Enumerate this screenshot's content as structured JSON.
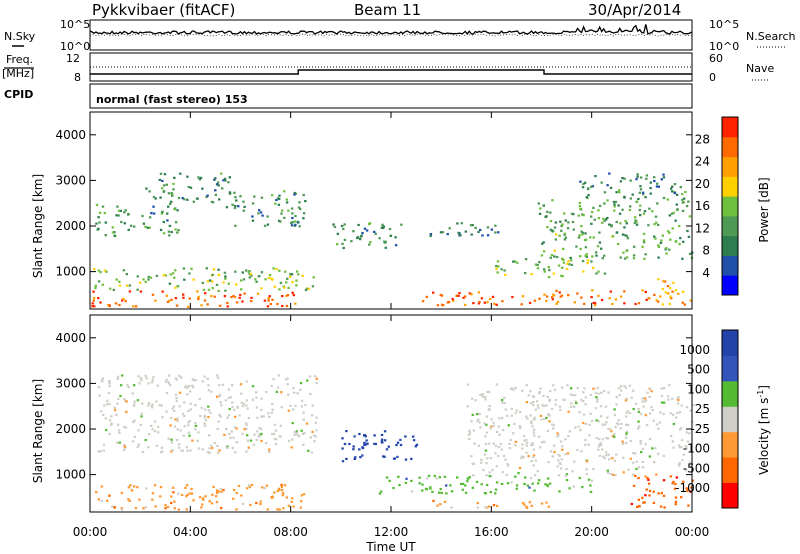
{
  "header": {
    "radar": "Pykkvibaer (fitACF)",
    "beam": "Beam 11",
    "date": "30/Apr/2014"
  },
  "noise_panel": {
    "left_label": "N.Sky",
    "left_ticks": [
      "10^5",
      "10^0"
    ],
    "right_label": "N.Search",
    "right_ticks": [
      "10^5",
      "10^0"
    ]
  },
  "freq_panel": {
    "left_label_1": "Freq.",
    "left_label_2": "[MHz]",
    "left_ticks": [
      "12",
      "8"
    ],
    "right_label": "Nave",
    "right_ticks": [
      "60",
      "0"
    ]
  },
  "cpid": {
    "label": "CPID",
    "text": "normal (fast stereo) 153"
  },
  "axes": {
    "ylabel": "Slant Range [km]",
    "xlabel": "Time UT",
    "yticks": [
      "1000",
      "2000",
      "3000",
      "4000"
    ],
    "xticks": [
      "00:00",
      "04:00",
      "08:00",
      "12:00",
      "16:00",
      "20:00",
      "00:00"
    ]
  },
  "colors": {
    "power": [
      "#0000ff",
      "#1f4fa8",
      "#2e7d4f",
      "#4e9a55",
      "#6fbf3f",
      "#ffd000",
      "#ff9f00",
      "#ff6a00",
      "#ff2200"
    ],
    "velocity": [
      "#ff0000",
      "#ff6600",
      "#ff9933",
      "#cfcfc8",
      "#55bb33",
      "#3355bb",
      "#2244aa"
    ]
  },
  "chart_data": [
    {
      "type": "heatmap",
      "title": "Power",
      "quantity": "Power [dB]",
      "x_range": [
        "00:00",
        "24:00"
      ],
      "y_range_km": [
        180,
        4500
      ],
      "colorbar_label": "Power [dB]",
      "colorbar_ticks": [
        "28",
        "24",
        "20",
        "16",
        "12",
        "8",
        "4"
      ],
      "colorbar_range": [
        0,
        30
      ],
      "regions": [
        {
          "t": [
            0.0,
            8.3
          ],
          "r": [
            250,
            600
          ],
          "level": 27
        },
        {
          "t": [
            0.0,
            9.0
          ],
          "r": [
            600,
            1100
          ],
          "level": 14
        },
        {
          "t": [
            0.2,
            3.5
          ],
          "r": [
            1800,
            2500
          ],
          "level": 10
        },
        {
          "t": [
            2.2,
            5.6
          ],
          "r": [
            2500,
            3200
          ],
          "level": 9
        },
        {
          "t": [
            5.4,
            8.6
          ],
          "r": [
            2000,
            2800
          ],
          "level": 9
        },
        {
          "t": [
            9.6,
            12.4
          ],
          "r": [
            1500,
            2100
          ],
          "level": 10
        },
        {
          "t": [
            13.0,
            16.5
          ],
          "r": [
            1800,
            2100
          ],
          "level": 8
        },
        {
          "t": [
            13.2,
            22.5
          ],
          "r": [
            280,
            620
          ],
          "level": 26
        },
        {
          "t": [
            16.0,
            20.5
          ],
          "r": [
            900,
            1300
          ],
          "level": 14
        },
        {
          "t": [
            17.8,
            24.0
          ],
          "r": [
            1300,
            2600
          ],
          "level": 12
        },
        {
          "t": [
            19.5,
            23.8
          ],
          "r": [
            2600,
            3200
          ],
          "level": 9
        },
        {
          "t": [
            22.5,
            24.0
          ],
          "r": [
            300,
            900
          ],
          "level": 22
        }
      ]
    },
    {
      "type": "heatmap",
      "title": "Velocity",
      "quantity": "Velocity [m s^-1]",
      "x_range": [
        "00:00",
        "24:00"
      ],
      "y_range_km": [
        180,
        4500
      ],
      "colorbar_label": "Velocity [m s",
      "colorbar_label_sup": "-1",
      "colorbar_label_end": "]",
      "colorbar_ticks": [
        "1000",
        "500",
        "100",
        "25",
        "-25",
        "-100",
        "-500",
        "-1000"
      ],
      "regions": [
        {
          "t": [
            0.0,
            8.5
          ],
          "r": [
            250,
            800
          ],
          "class": "-100"
        },
        {
          "t": [
            0.3,
            9.0
          ],
          "r": [
            1500,
            3200
          ],
          "class": "25"
        },
        {
          "t": [
            10.0,
            13.0
          ],
          "r": [
            1300,
            2000
          ],
          "class": "1000"
        },
        {
          "t": [
            11.5,
            20.0
          ],
          "r": [
            600,
            1000
          ],
          "class": "100"
        },
        {
          "t": [
            13.5,
            18.5
          ],
          "r": [
            280,
            450
          ],
          "class": "-100"
        },
        {
          "t": [
            15.0,
            24.0
          ],
          "r": [
            1000,
            3000
          ],
          "class": "25"
        },
        {
          "t": [
            21.5,
            24.0
          ],
          "r": [
            300,
            1000
          ],
          "class": "-500"
        }
      ]
    }
  ]
}
